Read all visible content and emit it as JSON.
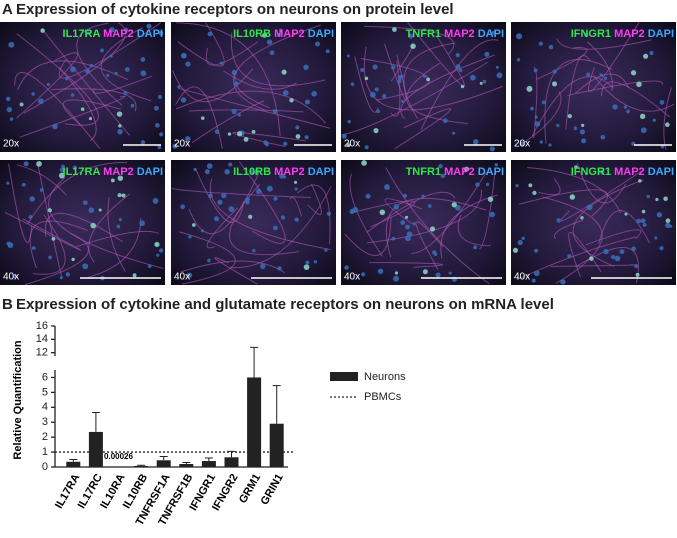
{
  "panel_a": {
    "letter": "A",
    "title": "Expression of cytokine receptors on neurons on protein level",
    "images": [
      {
        "marker": "IL17RA",
        "stain2": "MAP2",
        "stain3": "DAPI",
        "magnification": "20x"
      },
      {
        "marker": "IL10RB",
        "stain2": "MAP2",
        "stain3": "DAPI",
        "magnification": "20x"
      },
      {
        "marker": "TNFR1",
        "stain2": "MAP2",
        "stain3": "DAPI",
        "magnification": "20x"
      },
      {
        "marker": "IFNGR1",
        "stain2": "MAP2",
        "stain3": "DAPI",
        "magnification": "20x"
      },
      {
        "marker": "IL17RA",
        "stain2": "MAP2",
        "stain3": "DAPI",
        "magnification": "40x"
      },
      {
        "marker": "IL10RB",
        "stain2": "MAP2",
        "stain3": "DAPI",
        "magnification": "40x"
      },
      {
        "marker": "TNFR1",
        "stain2": "MAP2",
        "stain3": "DAPI",
        "magnification": "40x"
      },
      {
        "marker": "IFNGR1",
        "stain2": "MAP2",
        "stain3": "DAPI",
        "magnification": "40x"
      }
    ]
  },
  "chart_data": {
    "type": "bar",
    "letter": "B",
    "title": "Expression of cytokine and glutamate receptors on neurons on mRNA level",
    "ylabel": "Relative Quantification",
    "categories": [
      "IL17RA",
      "IL17RC",
      "IL10RA",
      "IL10RB",
      "TNFRSF1A",
      "TNFRSF1B",
      "IFNGR1",
      "IFNGR2",
      "GRM1",
      "GRIN1"
    ],
    "series": [
      {
        "name": "Neurons",
        "color": "#222222",
        "values": [
          0.35,
          2.35,
          0.00026,
          0.07,
          0.45,
          0.2,
          0.4,
          0.65,
          6.0,
          2.9
        ],
        "errors": [
          0.15,
          1.3,
          null,
          0.05,
          0.25,
          0.1,
          0.2,
          0.4,
          6.8,
          2.55
        ],
        "value_labels": [
          null,
          null,
          "0.00026",
          null,
          null,
          null,
          null,
          null,
          null,
          null
        ]
      }
    ],
    "reference_lines": [
      {
        "name": "PBMCs",
        "value": 1
      }
    ],
    "ylim": [
      0,
      6.5
    ],
    "yticks": [
      0,
      1,
      2,
      3,
      4,
      5,
      6
    ],
    "ylim_upper": [
      11.5,
      16
    ],
    "yticks_upper": [
      12,
      14,
      16
    ]
  }
}
